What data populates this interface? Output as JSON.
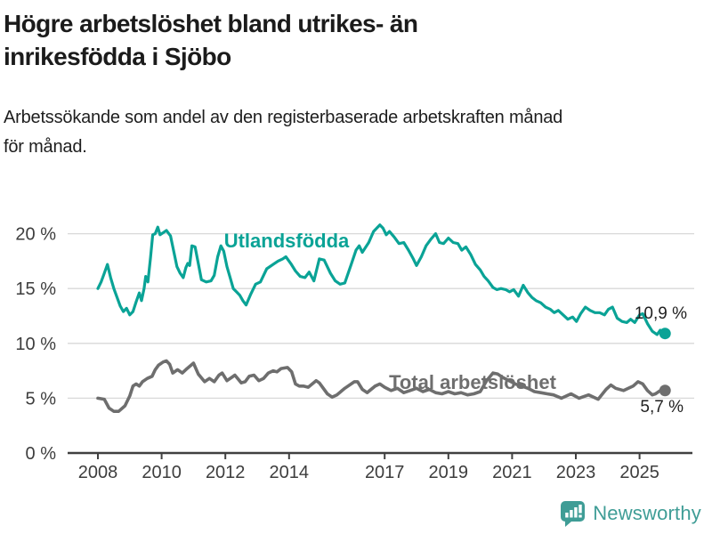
{
  "header": {
    "title_lines": [
      "Högre arbetslöshet bland utrikes- än",
      "inrikesfödda i Sjöbo"
    ],
    "subtitle_lines": [
      "Arbetssökande som andel av den registerbaserade arbetskraften månad",
      "för månad."
    ]
  },
  "footer": {
    "brand": "Newsworthy"
  },
  "colors": {
    "teal_line": "#0aa396",
    "gray_line": "#6e6e6e",
    "logo_teal": "#3f9d96",
    "gridline": "#d8d8d8",
    "axis": "#404040",
    "axis_text": "#3d3d3d",
    "annotation_text": "#1f1f1f"
  },
  "chart_data": {
    "type": "line",
    "title": "Högre arbetslöshet bland utrikes- än inrikesfödda i Sjöbo",
    "subtitle": "Arbetssökande som andel av den registerbaserade arbetskraften månad för månad.",
    "unit": "%",
    "grid": "horizontal",
    "legend": "inline-labels",
    "xlim": [
      2008,
      2025.8
    ],
    "ylim": [
      0,
      21
    ],
    "yticks": [
      0,
      5,
      10,
      15,
      20
    ],
    "ytick_labels": [
      "0 %",
      "5 %",
      "10 %",
      "15 %",
      "20 %"
    ],
    "xticks": [
      2008,
      2010,
      2012,
      2014,
      2017,
      2019,
      2021,
      2023,
      2025
    ],
    "xtick_labels": [
      "2008",
      "2010",
      "2012",
      "2014",
      "2017",
      "2019",
      "2021",
      "2023",
      "2025"
    ],
    "series": [
      {
        "name": "Utlandsfödda",
        "color": "#0aa396",
        "end_value": 10.9,
        "end_label": "10,9 %",
        "points": [
          [
            2008.0,
            15.0
          ],
          [
            2008.1,
            15.6
          ],
          [
            2008.2,
            16.4
          ],
          [
            2008.3,
            17.2
          ],
          [
            2008.4,
            16.0
          ],
          [
            2008.5,
            15.0
          ],
          [
            2008.6,
            14.2
          ],
          [
            2008.7,
            13.4
          ],
          [
            2008.8,
            12.9
          ],
          [
            2008.9,
            13.2
          ],
          [
            2009.0,
            12.6
          ],
          [
            2009.1,
            12.9
          ],
          [
            2009.2,
            13.8
          ],
          [
            2009.3,
            14.6
          ],
          [
            2009.37,
            13.9
          ],
          [
            2009.45,
            15.0
          ],
          [
            2009.5,
            16.1
          ],
          [
            2009.57,
            15.6
          ],
          [
            2009.65,
            17.8
          ],
          [
            2009.72,
            19.9
          ],
          [
            2009.8,
            20.0
          ],
          [
            2009.88,
            20.6
          ],
          [
            2009.95,
            19.9
          ],
          [
            2010.05,
            20.1
          ],
          [
            2010.15,
            20.3
          ],
          [
            2010.28,
            19.8
          ],
          [
            2010.38,
            18.4
          ],
          [
            2010.48,
            17.0
          ],
          [
            2010.58,
            16.4
          ],
          [
            2010.68,
            16.0
          ],
          [
            2010.76,
            16.9
          ],
          [
            2010.82,
            17.3
          ],
          [
            2010.88,
            17.1
          ],
          [
            2010.95,
            18.9
          ],
          [
            2011.05,
            18.8
          ],
          [
            2011.15,
            17.3
          ],
          [
            2011.25,
            15.8
          ],
          [
            2011.4,
            15.6
          ],
          [
            2011.55,
            15.7
          ],
          [
            2011.65,
            16.2
          ],
          [
            2011.76,
            17.9
          ],
          [
            2011.86,
            18.9
          ],
          [
            2011.95,
            18.4
          ],
          [
            2012.05,
            17.0
          ],
          [
            2012.15,
            16.0
          ],
          [
            2012.25,
            15.0
          ],
          [
            2012.35,
            14.7
          ],
          [
            2012.45,
            14.4
          ],
          [
            2012.55,
            13.9
          ],
          [
            2012.65,
            13.5
          ],
          [
            2012.8,
            14.5
          ],
          [
            2012.95,
            15.4
          ],
          [
            2013.1,
            15.6
          ],
          [
            2013.3,
            16.8
          ],
          [
            2013.5,
            17.2
          ],
          [
            2013.65,
            17.5
          ],
          [
            2013.8,
            17.7
          ],
          [
            2013.9,
            17.9
          ],
          [
            2014.05,
            17.3
          ],
          [
            2014.2,
            16.6
          ],
          [
            2014.35,
            16.1
          ],
          [
            2014.5,
            16.0
          ],
          [
            2014.63,
            16.5
          ],
          [
            2014.78,
            15.7
          ],
          [
            2014.95,
            17.7
          ],
          [
            2015.1,
            17.6
          ],
          [
            2015.3,
            16.4
          ],
          [
            2015.45,
            15.7
          ],
          [
            2015.6,
            15.4
          ],
          [
            2015.75,
            15.5
          ],
          [
            2015.95,
            17.2
          ],
          [
            2016.1,
            18.5
          ],
          [
            2016.2,
            18.9
          ],
          [
            2016.3,
            18.3
          ],
          [
            2016.5,
            19.2
          ],
          [
            2016.65,
            20.2
          ],
          [
            2016.85,
            20.8
          ],
          [
            2016.95,
            20.5
          ],
          [
            2017.05,
            19.9
          ],
          [
            2017.15,
            20.2
          ],
          [
            2017.3,
            19.7
          ],
          [
            2017.45,
            19.1
          ],
          [
            2017.6,
            19.2
          ],
          [
            2017.75,
            18.5
          ],
          [
            2017.9,
            17.7
          ],
          [
            2018.0,
            17.1
          ],
          [
            2018.15,
            17.9
          ],
          [
            2018.3,
            18.9
          ],
          [
            2018.45,
            19.5
          ],
          [
            2018.6,
            20.0
          ],
          [
            2018.72,
            19.2
          ],
          [
            2018.85,
            19.1
          ],
          [
            2019.0,
            19.6
          ],
          [
            2019.15,
            19.2
          ],
          [
            2019.3,
            19.1
          ],
          [
            2019.42,
            18.5
          ],
          [
            2019.55,
            18.8
          ],
          [
            2019.7,
            18.1
          ],
          [
            2019.85,
            17.2
          ],
          [
            2020.0,
            16.7
          ],
          [
            2020.12,
            16.1
          ],
          [
            2020.25,
            15.7
          ],
          [
            2020.4,
            15.1
          ],
          [
            2020.52,
            14.9
          ],
          [
            2020.65,
            15.0
          ],
          [
            2020.8,
            14.9
          ],
          [
            2020.92,
            14.7
          ],
          [
            2021.05,
            14.9
          ],
          [
            2021.2,
            14.3
          ],
          [
            2021.35,
            15.3
          ],
          [
            2021.5,
            14.6
          ],
          [
            2021.62,
            14.2
          ],
          [
            2021.75,
            13.9
          ],
          [
            2021.9,
            13.7
          ],
          [
            2022.05,
            13.3
          ],
          [
            2022.2,
            13.1
          ],
          [
            2022.32,
            12.8
          ],
          [
            2022.45,
            13.0
          ],
          [
            2022.6,
            12.6
          ],
          [
            2022.75,
            12.2
          ],
          [
            2022.9,
            12.4
          ],
          [
            2023.02,
            12.0
          ],
          [
            2023.15,
            12.7
          ],
          [
            2023.3,
            13.3
          ],
          [
            2023.45,
            13.0
          ],
          [
            2023.6,
            12.8
          ],
          [
            2023.75,
            12.8
          ],
          [
            2023.9,
            12.6
          ],
          [
            2024.02,
            13.1
          ],
          [
            2024.15,
            13.3
          ],
          [
            2024.3,
            12.3
          ],
          [
            2024.45,
            12.0
          ],
          [
            2024.6,
            11.9
          ],
          [
            2024.72,
            12.2
          ],
          [
            2024.85,
            11.9
          ],
          [
            2025.0,
            12.6
          ],
          [
            2025.1,
            12.7
          ],
          [
            2025.25,
            11.8
          ],
          [
            2025.4,
            11.1
          ],
          [
            2025.55,
            10.8
          ],
          [
            2025.65,
            11.2
          ],
          [
            2025.8,
            10.9
          ]
        ]
      },
      {
        "name": "Total arbetslöshet",
        "color": "#6e6e6e",
        "end_value": 5.7,
        "end_label": "5,7 %",
        "points": [
          [
            2008.0,
            5.0
          ],
          [
            2008.2,
            4.9
          ],
          [
            2008.35,
            4.1
          ],
          [
            2008.5,
            3.8
          ],
          [
            2008.65,
            3.8
          ],
          [
            2008.85,
            4.3
          ],
          [
            2009.0,
            5.2
          ],
          [
            2009.1,
            6.1
          ],
          [
            2009.2,
            6.3
          ],
          [
            2009.3,
            6.1
          ],
          [
            2009.4,
            6.5
          ],
          [
            2009.55,
            6.8
          ],
          [
            2009.7,
            7.0
          ],
          [
            2009.8,
            7.6
          ],
          [
            2009.9,
            8.0
          ],
          [
            2010.05,
            8.3
          ],
          [
            2010.15,
            8.4
          ],
          [
            2010.25,
            8.1
          ],
          [
            2010.35,
            7.3
          ],
          [
            2010.5,
            7.6
          ],
          [
            2010.65,
            7.3
          ],
          [
            2010.8,
            7.7
          ],
          [
            2011.0,
            8.2
          ],
          [
            2011.15,
            7.2
          ],
          [
            2011.35,
            6.5
          ],
          [
            2011.5,
            6.8
          ],
          [
            2011.65,
            6.5
          ],
          [
            2011.8,
            7.1
          ],
          [
            2011.9,
            7.3
          ],
          [
            2012.05,
            6.6
          ],
          [
            2012.2,
            6.9
          ],
          [
            2012.3,
            7.1
          ],
          [
            2012.5,
            6.4
          ],
          [
            2012.62,
            6.5
          ],
          [
            2012.75,
            7.0
          ],
          [
            2012.9,
            7.1
          ],
          [
            2013.05,
            6.6
          ],
          [
            2013.2,
            6.8
          ],
          [
            2013.35,
            7.3
          ],
          [
            2013.5,
            7.5
          ],
          [
            2013.62,
            7.4
          ],
          [
            2013.75,
            7.7
          ],
          [
            2013.95,
            7.8
          ],
          [
            2014.08,
            7.4
          ],
          [
            2014.2,
            6.3
          ],
          [
            2014.32,
            6.1
          ],
          [
            2014.45,
            6.1
          ],
          [
            2014.6,
            6.0
          ],
          [
            2014.85,
            6.6
          ],
          [
            2014.95,
            6.4
          ],
          [
            2015.2,
            5.4
          ],
          [
            2015.35,
            5.1
          ],
          [
            2015.5,
            5.3
          ],
          [
            2015.75,
            5.9
          ],
          [
            2016.05,
            6.5
          ],
          [
            2016.15,
            6.5
          ],
          [
            2016.3,
            5.8
          ],
          [
            2016.45,
            5.5
          ],
          [
            2016.7,
            6.1
          ],
          [
            2016.85,
            6.3
          ],
          [
            2017.0,
            6.0
          ],
          [
            2017.2,
            5.7
          ],
          [
            2017.4,
            5.9
          ],
          [
            2017.6,
            5.5
          ],
          [
            2017.8,
            5.7
          ],
          [
            2018.0,
            5.9
          ],
          [
            2018.2,
            5.6
          ],
          [
            2018.4,
            5.8
          ],
          [
            2018.6,
            5.5
          ],
          [
            2018.8,
            5.4
          ],
          [
            2019.0,
            5.6
          ],
          [
            2019.2,
            5.4
          ],
          [
            2019.4,
            5.5
          ],
          [
            2019.6,
            5.3
          ],
          [
            2019.8,
            5.4
          ],
          [
            2020.0,
            5.6
          ],
          [
            2020.2,
            6.6
          ],
          [
            2020.4,
            7.3
          ],
          [
            2020.55,
            7.2
          ],
          [
            2020.7,
            6.9
          ],
          [
            2020.9,
            6.6
          ],
          [
            2021.1,
            6.3
          ],
          [
            2021.3,
            6.1
          ],
          [
            2021.5,
            5.9
          ],
          [
            2021.7,
            5.6
          ],
          [
            2021.9,
            5.5
          ],
          [
            2022.1,
            5.4
          ],
          [
            2022.3,
            5.3
          ],
          [
            2022.55,
            5.0
          ],
          [
            2022.85,
            5.4
          ],
          [
            2023.1,
            5.0
          ],
          [
            2023.4,
            5.3
          ],
          [
            2023.7,
            4.9
          ],
          [
            2023.95,
            5.8
          ],
          [
            2024.1,
            6.2
          ],
          [
            2024.25,
            5.9
          ],
          [
            2024.5,
            5.7
          ],
          [
            2024.8,
            6.1
          ],
          [
            2024.95,
            6.5
          ],
          [
            2025.1,
            6.3
          ],
          [
            2025.25,
            5.7
          ],
          [
            2025.4,
            5.3
          ],
          [
            2025.5,
            5.4
          ],
          [
            2025.65,
            5.7
          ],
          [
            2025.8,
            5.7
          ]
        ]
      }
    ]
  }
}
